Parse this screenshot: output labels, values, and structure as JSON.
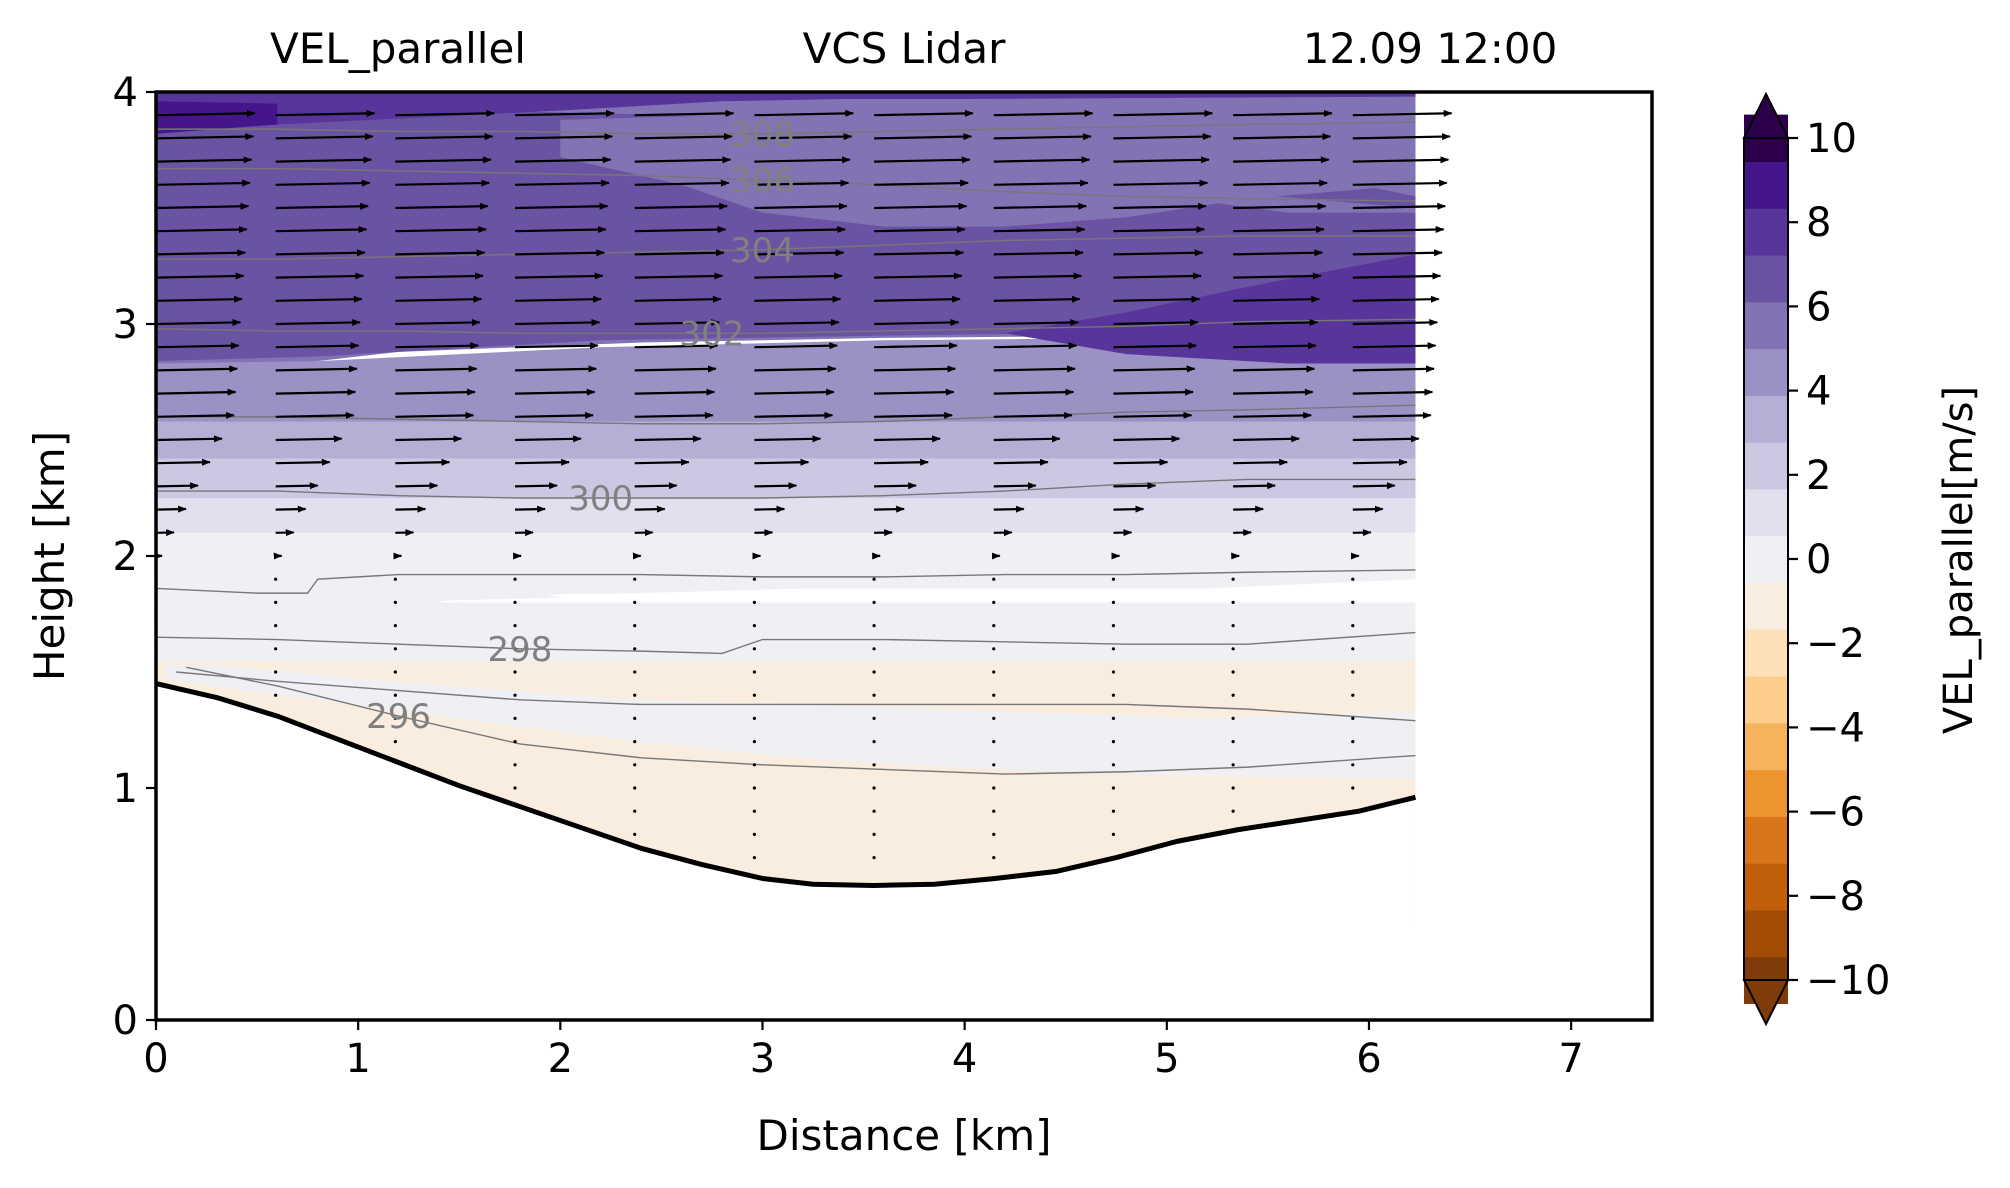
{
  "titles": {
    "left": "VEL_parallel",
    "center": "VCS Lidar",
    "right": "12.09 12:00"
  },
  "chart_data": {
    "type": "contourf",
    "xlabel": "Distance [km]",
    "ylabel": "Height [km]",
    "xlim": [
      0,
      7.4
    ],
    "ylim": [
      0,
      4
    ],
    "xticks": [
      "0",
      "1",
      "2",
      "3",
      "4",
      "5",
      "6",
      "7"
    ],
    "yticks": [
      "0",
      "1",
      "2",
      "3",
      "4"
    ],
    "data_xmax": 6.23,
    "colorbar": {
      "label": "VEL_parallel[m/s]",
      "range": [
        -10,
        10
      ],
      "ticks": [
        "10",
        "8",
        "6",
        "4",
        "2",
        "0",
        "−2",
        "−4",
        "−6",
        "−8",
        "−10"
      ],
      "extend": "both",
      "cmap": "PuOr",
      "colors": [
        "#7f3b08",
        "#a34c06",
        "#c25f0b",
        "#d8751a",
        "#ec952f",
        "#f7b35c",
        "#fdcd8b",
        "#fde0b6",
        "#f8eddf",
        "#eff0f4",
        "#e0e0ee",
        "#cbc8e2",
        "#b5afd5",
        "#9b91c4",
        "#8274b4",
        "#6b53a3",
        "#58359a",
        "#45168b",
        "#2d004b"
      ]
    },
    "terrain": [
      [
        0,
        1.45
      ],
      [
        0.3,
        1.39
      ],
      [
        0.6,
        1.31
      ],
      [
        0.9,
        1.21
      ],
      [
        1.2,
        1.11
      ],
      [
        1.5,
        1.01
      ],
      [
        1.8,
        0.92
      ],
      [
        2.1,
        0.83
      ],
      [
        2.4,
        0.74
      ],
      [
        2.7,
        0.67
      ],
      [
        3.0,
        0.61
      ],
      [
        3.25,
        0.585
      ],
      [
        3.55,
        0.58
      ],
      [
        3.85,
        0.585
      ],
      [
        4.15,
        0.61
      ],
      [
        4.45,
        0.64
      ],
      [
        4.75,
        0.7
      ],
      [
        5.05,
        0.77
      ],
      [
        5.35,
        0.82
      ],
      [
        5.65,
        0.86
      ],
      [
        5.95,
        0.9
      ],
      [
        6.23,
        0.96
      ]
    ],
    "isentropes": [
      {
        "label": "296",
        "points": [
          [
            0.15,
            1.52
          ],
          [
            0.6,
            1.44
          ],
          [
            1.2,
            1.31
          ],
          [
            1.8,
            1.19
          ],
          [
            2.4,
            1.13
          ],
          [
            3,
            1.1
          ],
          [
            3.6,
            1.08
          ],
          [
            4.2,
            1.06
          ],
          [
            4.8,
            1.07
          ],
          [
            5.4,
            1.09
          ],
          [
            6.23,
            1.14
          ]
        ]
      },
      {
        "label": "",
        "points": [
          [
            0.1,
            1.5
          ],
          [
            0.6,
            1.46
          ],
          [
            1.2,
            1.42
          ],
          [
            1.8,
            1.38
          ],
          [
            2.4,
            1.36
          ],
          [
            3,
            1.36
          ],
          [
            3.6,
            1.36
          ],
          [
            4.2,
            1.36
          ],
          [
            4.8,
            1.36
          ],
          [
            5.4,
            1.34
          ],
          [
            6.23,
            1.29
          ]
        ]
      },
      {
        "label": "298",
        "points": [
          [
            0,
            1.65
          ],
          [
            0.6,
            1.64
          ],
          [
            1.2,
            1.62
          ],
          [
            1.8,
            1.6
          ],
          [
            2.4,
            1.59
          ],
          [
            2.8,
            1.58
          ],
          [
            3,
            1.64
          ],
          [
            3.6,
            1.64
          ],
          [
            4.2,
            1.63
          ],
          [
            4.8,
            1.62
          ],
          [
            5.4,
            1.62
          ],
          [
            6.23,
            1.67
          ]
        ]
      },
      {
        "label": "",
        "points": [
          [
            0,
            1.86
          ],
          [
            0.5,
            1.84
          ],
          [
            0.75,
            1.84
          ],
          [
            0.8,
            1.9
          ],
          [
            1.2,
            1.92
          ],
          [
            1.8,
            1.92
          ],
          [
            2.4,
            1.92
          ],
          [
            3,
            1.91
          ],
          [
            3.6,
            1.91
          ],
          [
            4.2,
            1.92
          ],
          [
            4.8,
            1.92
          ],
          [
            5.4,
            1.93
          ],
          [
            6.23,
            1.94
          ]
        ]
      },
      {
        "label": "300",
        "points": [
          [
            0,
            2.28
          ],
          [
            0.6,
            2.28
          ],
          [
            1.2,
            2.26
          ],
          [
            1.8,
            2.25
          ],
          [
            2.4,
            2.25
          ],
          [
            3,
            2.25
          ],
          [
            3.6,
            2.26
          ],
          [
            4.2,
            2.28
          ],
          [
            4.8,
            2.31
          ],
          [
            5.4,
            2.33
          ],
          [
            6.23,
            2.33
          ]
        ]
      },
      {
        "label": "",
        "points": [
          [
            0,
            2.6
          ],
          [
            0.6,
            2.6
          ],
          [
            1.2,
            2.59
          ],
          [
            1.8,
            2.58
          ],
          [
            2.4,
            2.57
          ],
          [
            3,
            2.57
          ],
          [
            3.6,
            2.58
          ],
          [
            4.2,
            2.6
          ],
          [
            4.8,
            2.62
          ],
          [
            5.4,
            2.63
          ],
          [
            6.23,
            2.65
          ]
        ]
      },
      {
        "label": "302",
        "points": [
          [
            0,
            2.98
          ],
          [
            0.6,
            2.97
          ],
          [
            1.2,
            2.97
          ],
          [
            1.8,
            2.96
          ],
          [
            2.4,
            2.96
          ],
          [
            3,
            2.96
          ],
          [
            3.6,
            2.97
          ],
          [
            4.2,
            2.98
          ],
          [
            4.8,
            2.99
          ],
          [
            5.4,
            3.01
          ],
          [
            6.23,
            3.02
          ]
        ]
      },
      {
        "label": "304",
        "points": [
          [
            0,
            3.28
          ],
          [
            0.6,
            3.28
          ],
          [
            1.2,
            3.29
          ],
          [
            1.8,
            3.3
          ],
          [
            2.4,
            3.31
          ],
          [
            3,
            3.32
          ],
          [
            3.6,
            3.34
          ],
          [
            4.2,
            3.36
          ],
          [
            4.8,
            3.37
          ],
          [
            5.4,
            3.38
          ],
          [
            6.23,
            3.38
          ]
        ]
      },
      {
        "label": "306",
        "points": [
          [
            0,
            3.67
          ],
          [
            0.6,
            3.67
          ],
          [
            1.2,
            3.66
          ],
          [
            1.8,
            3.65
          ],
          [
            2.4,
            3.64
          ],
          [
            3,
            3.62
          ],
          [
            3.6,
            3.6
          ],
          [
            4.2,
            3.57
          ],
          [
            4.8,
            3.55
          ],
          [
            5.4,
            3.54
          ],
          [
            6.23,
            3.53
          ]
        ]
      },
      {
        "label": "308",
        "points": [
          [
            0,
            3.84
          ],
          [
            0.6,
            3.84
          ],
          [
            1.2,
            3.83
          ],
          [
            1.8,
            3.83
          ],
          [
            2.4,
            3.82
          ],
          [
            3,
            3.82
          ],
          [
            3.6,
            3.83
          ],
          [
            4.2,
            3.84
          ],
          [
            4.8,
            3.85
          ],
          [
            5.4,
            3.86
          ],
          [
            6.23,
            3.87
          ]
        ]
      }
    ]
  }
}
